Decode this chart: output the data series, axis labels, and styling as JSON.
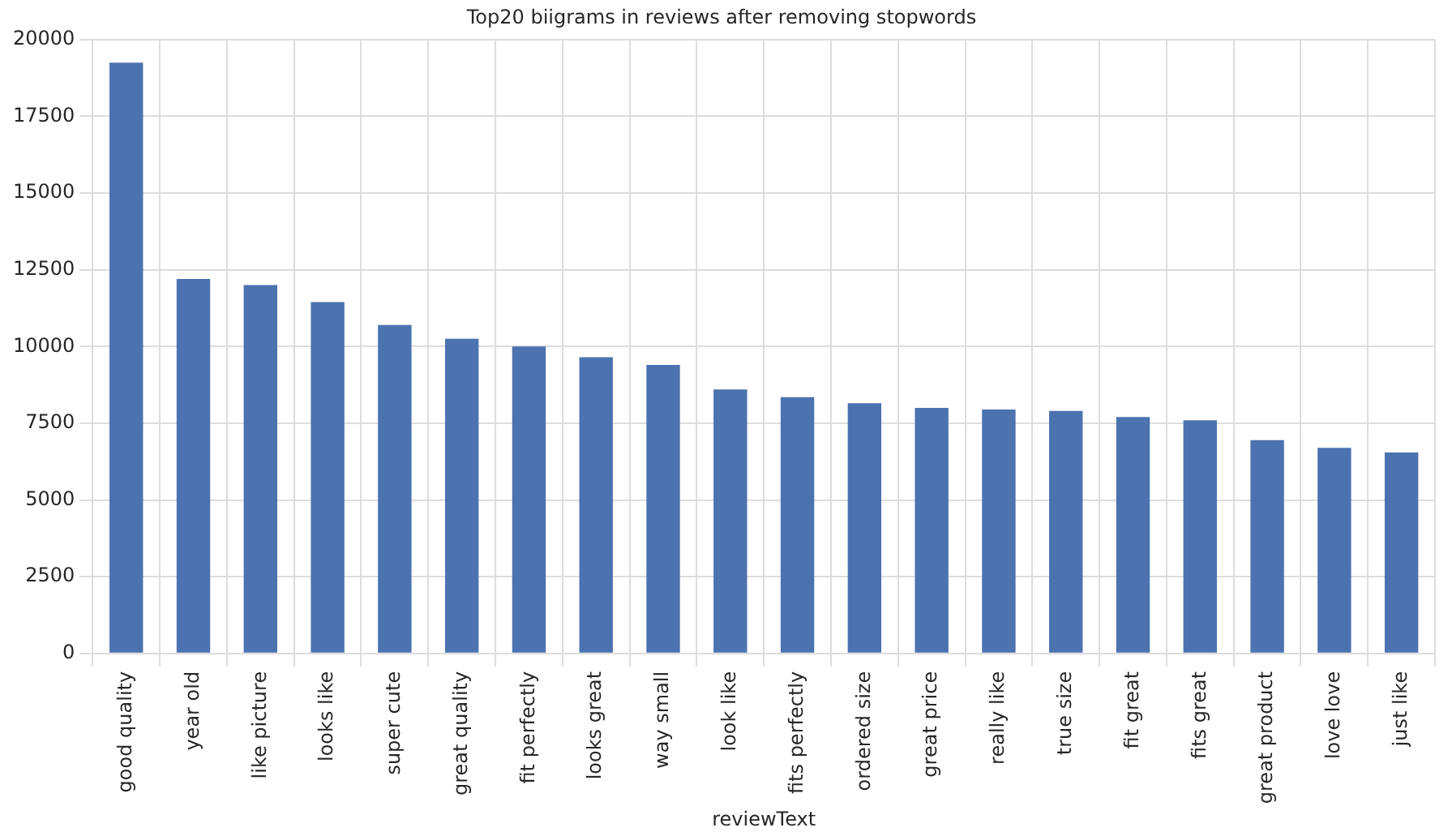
{
  "chart_data": {
    "type": "bar",
    "title": "Top20 biigrams in reviews after removing stopwords",
    "xlabel": "reviewText",
    "categories": [
      "good quality",
      "year old",
      "like picture",
      "looks like",
      "super cute",
      "great quality",
      "fit perfectly",
      "looks great",
      "way small",
      "look like",
      "fits perfectly",
      "ordered size",
      "great price",
      "really like",
      "true size",
      "fit great",
      "fits great",
      "great product",
      "love love",
      "just like"
    ],
    "values": [
      19250,
      12200,
      12000,
      11450,
      10700,
      10250,
      10000,
      9650,
      9400,
      8600,
      8350,
      8150,
      8000,
      7950,
      7900,
      7700,
      7600,
      6950,
      6700,
      6550
    ],
    "color": "#4c72b0",
    "ylim": [
      0,
      20000
    ],
    "yticks": [
      0,
      2500,
      5000,
      7500,
      10000,
      12500,
      15000,
      17500,
      20000
    ],
    "grid": true
  }
}
